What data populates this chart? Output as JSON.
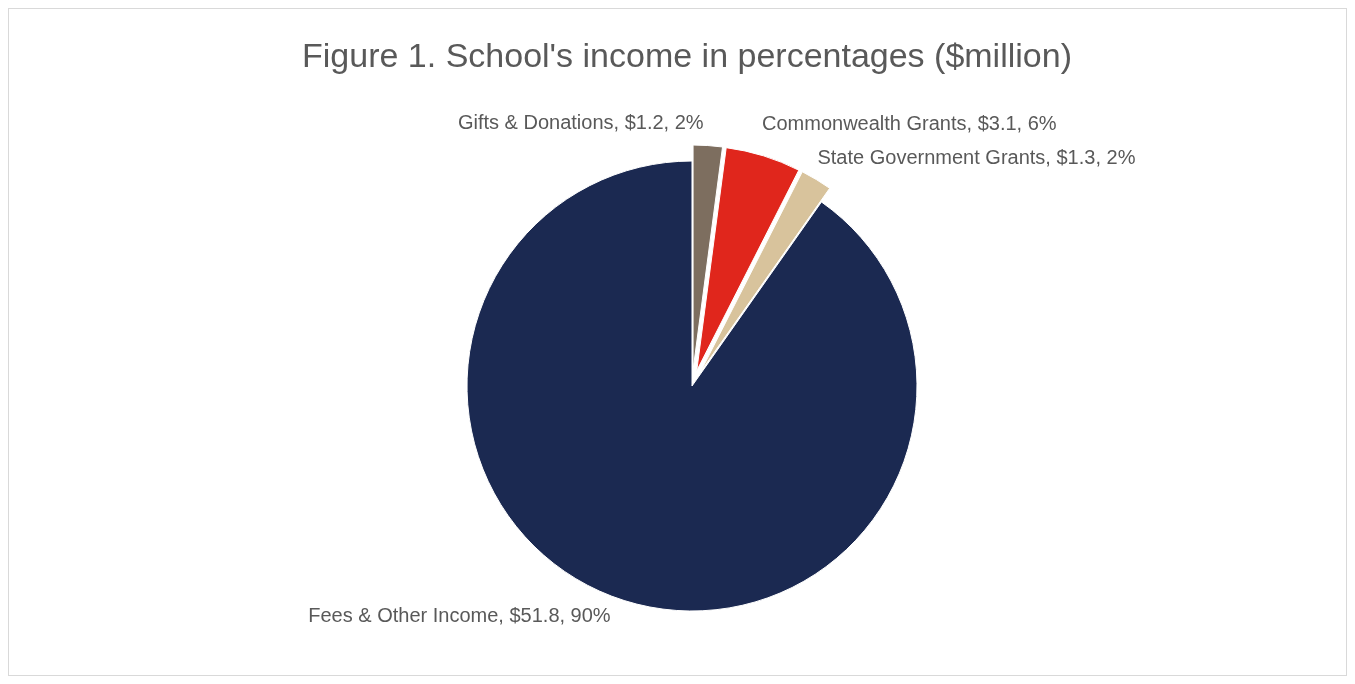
{
  "chart_data": {
    "type": "pie",
    "title": "Figure 1. School's income in percentages ($million)",
    "categories": [
      "Gifts & Donations",
      "Commonwealth Grants",
      "State Government Grants",
      "Fees & Other Income"
    ],
    "values": [
      1.2,
      3.1,
      1.3,
      51.8
    ],
    "value_labels": [
      ", $1.2, 2%",
      ", $3.1, 6%",
      ", $1.3, 2%",
      ", $51.8, 90%"
    ],
    "colors": [
      "#7d6e5f",
      "#e0261c",
      "#d8c39c",
      "#1b2951"
    ],
    "legend": false
  }
}
